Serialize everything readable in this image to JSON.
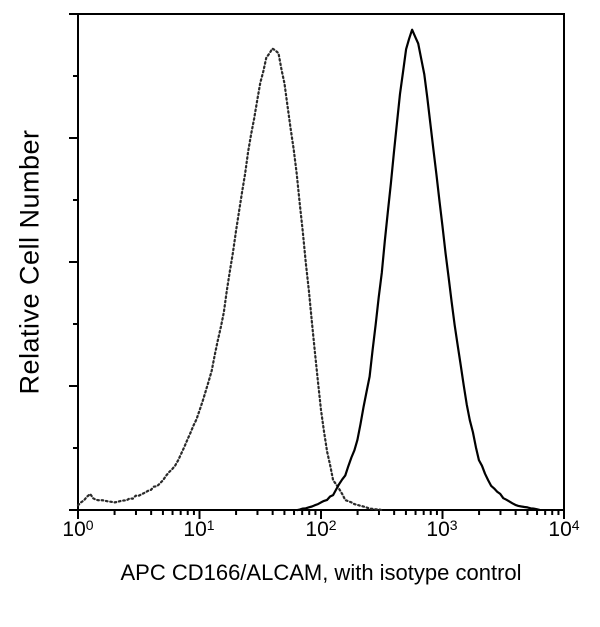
{
  "chart_data": {
    "type": "line",
    "chart_kind": "flow-cytometry-overlay-histogram",
    "title": "",
    "xlabel": "APC CD166/ALCAM, with isotype control",
    "ylabel": "Relative Cell Number",
    "x_scale": "log10",
    "xlim_log10": [
      0,
      4
    ],
    "x_tick_labels": [
      {
        "base": "10",
        "exp": "0"
      },
      {
        "base": "10",
        "exp": "1"
      },
      {
        "base": "10",
        "exp": "2"
      },
      {
        "base": "10",
        "exp": "3"
      },
      {
        "base": "10",
        "exp": "4"
      }
    ],
    "ylim": [
      0,
      100
    ],
    "y_axis_ticks": "unlabeled",
    "grid": false,
    "legend": "none",
    "frame_color": "#000000",
    "series": [
      {
        "name": "isotype control",
        "style": "dotted",
        "color": "#2a2a2a",
        "peak_x_log10": 1.58,
        "peak_y": 93,
        "points": [
          [
            0.0,
            1
          ],
          [
            0.05,
            2
          ],
          [
            0.1,
            3
          ],
          [
            0.15,
            2
          ],
          [
            0.2,
            2
          ],
          [
            0.3,
            1.5
          ],
          [
            0.4,
            2
          ],
          [
            0.5,
            3
          ],
          [
            0.6,
            4
          ],
          [
            0.7,
            6
          ],
          [
            0.8,
            9
          ],
          [
            0.9,
            14
          ],
          [
            1.0,
            20
          ],
          [
            1.1,
            28
          ],
          [
            1.2,
            40
          ],
          [
            1.3,
            56
          ],
          [
            1.4,
            72
          ],
          [
            1.5,
            86
          ],
          [
            1.55,
            91
          ],
          [
            1.6,
            93
          ],
          [
            1.65,
            92
          ],
          [
            1.7,
            86
          ],
          [
            1.8,
            68
          ],
          [
            1.9,
            44
          ],
          [
            2.0,
            20
          ],
          [
            2.05,
            12
          ],
          [
            2.1,
            6
          ],
          [
            2.2,
            2
          ],
          [
            2.3,
            1
          ],
          [
            2.4,
            0.3
          ],
          [
            2.5,
            0
          ]
        ]
      },
      {
        "name": "APC CD166/ALCAM",
        "style": "solid",
        "color": "#000000",
        "peak_x_log10": 2.74,
        "peak_y": 97,
        "points": [
          [
            1.8,
            0
          ],
          [
            1.9,
            0.5
          ],
          [
            2.0,
            1.5
          ],
          [
            2.1,
            3
          ],
          [
            2.2,
            7
          ],
          [
            2.3,
            14
          ],
          [
            2.4,
            27
          ],
          [
            2.5,
            48
          ],
          [
            2.6,
            72
          ],
          [
            2.65,
            84
          ],
          [
            2.7,
            93
          ],
          [
            2.75,
            97
          ],
          [
            2.8,
            94
          ],
          [
            2.85,
            88
          ],
          [
            2.9,
            78
          ],
          [
            3.0,
            57
          ],
          [
            3.1,
            37
          ],
          [
            3.2,
            21
          ],
          [
            3.3,
            10
          ],
          [
            3.4,
            5
          ],
          [
            3.5,
            2.5
          ],
          [
            3.6,
            1
          ],
          [
            3.7,
            0.5
          ],
          [
            3.8,
            0
          ]
        ]
      }
    ]
  }
}
